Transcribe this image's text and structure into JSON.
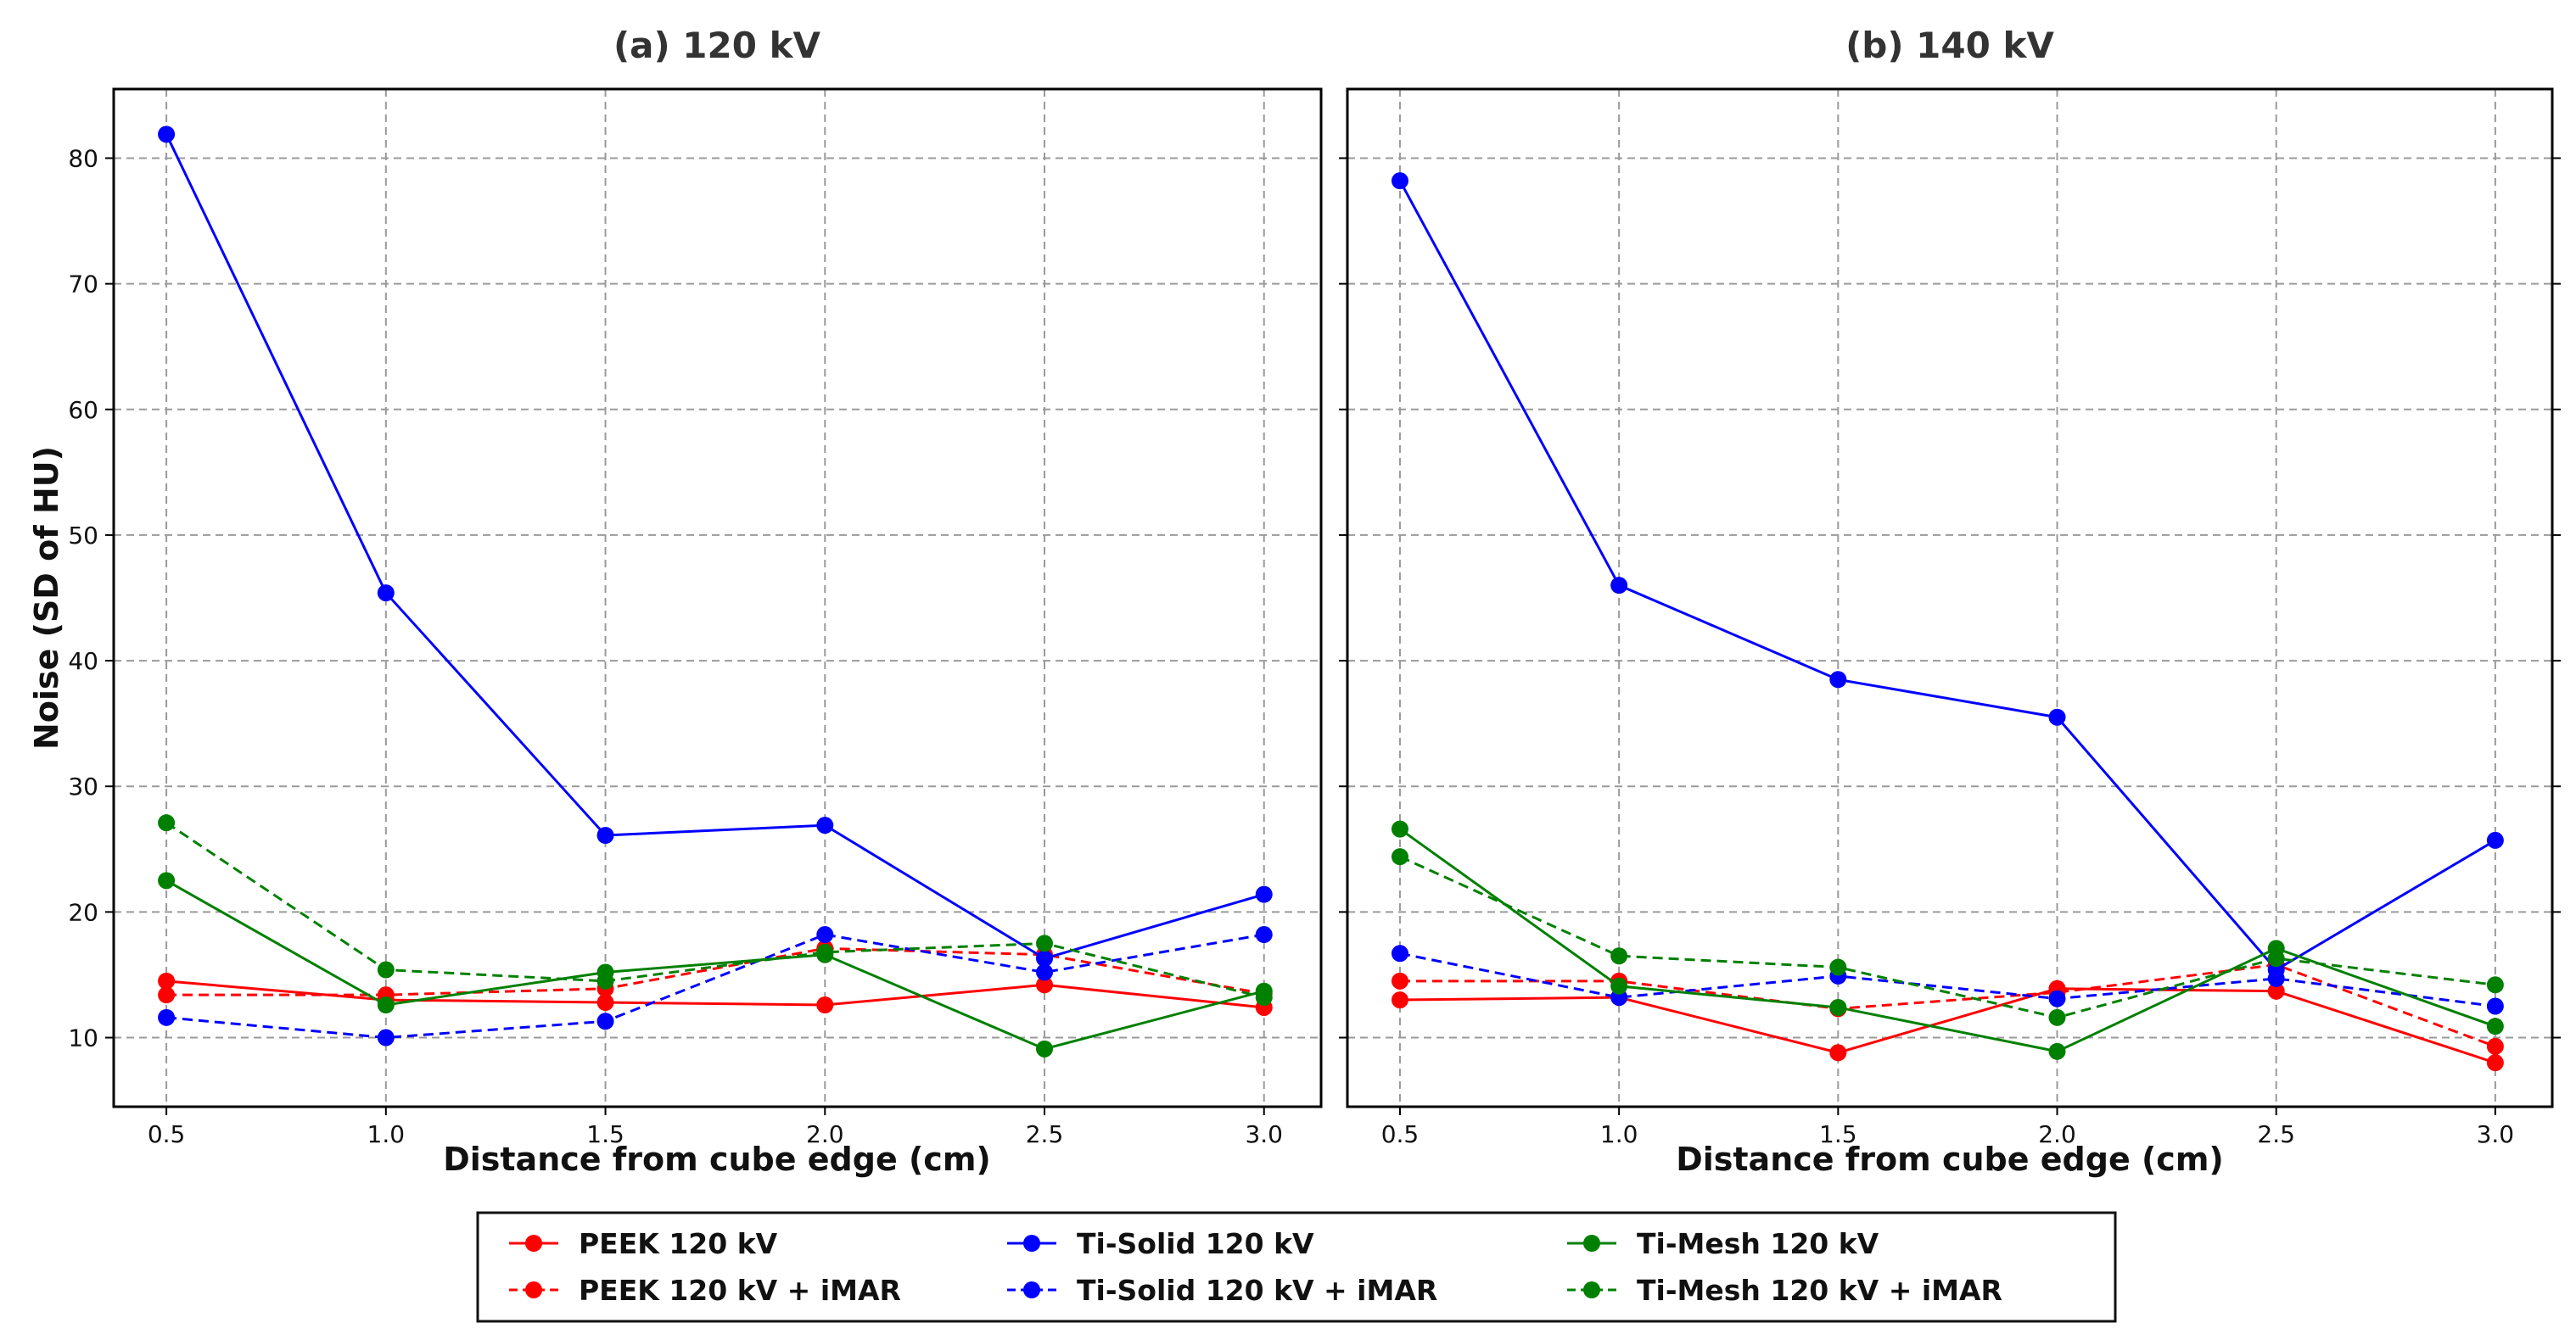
{
  "chart_data": {
    "type": "line",
    "shared": {
      "xlabel": "Distance from cube edge (cm)",
      "ylabel": "Noise (SD of HU)",
      "x": [
        0.5,
        1.0,
        1.5,
        2.0,
        2.5,
        3.0
      ],
      "x_tick_labels": [
        "0.5",
        "1.0",
        "1.5",
        "2.0",
        "2.5",
        "3.0"
      ],
      "xlim": [
        0.38,
        3.13
      ],
      "ylim": [
        4.5,
        85.5
      ],
      "y_ticks": [
        10,
        20,
        30,
        40,
        50,
        60,
        70,
        80
      ],
      "y_tick_labels": [
        "10",
        "20",
        "30",
        "40",
        "50",
        "60",
        "70",
        "80"
      ],
      "grid": true,
      "legend_position": "bottom-center"
    },
    "panels": [
      {
        "title": "(a) 120 kV",
        "series": [
          {
            "name": "PEEK 120 kV",
            "color": "#ff0000",
            "style": "solid",
            "values": [
              14.5,
              13.0,
              12.8,
              12.6,
              14.2,
              12.4
            ]
          },
          {
            "name": "PEEK 120 kV + iMAR",
            "color": "#ff0000",
            "style": "dashed",
            "values": [
              13.4,
              13.4,
              13.9,
              17.1,
              16.6,
              13.5
            ]
          },
          {
            "name": "Ti-Solid 120 kV",
            "color": "#0000ff",
            "style": "solid",
            "values": [
              81.9,
              45.4,
              26.1,
              26.9,
              16.3,
              21.4
            ]
          },
          {
            "name": "Ti-Solid 120 kV + iMAR",
            "color": "#0000ff",
            "style": "dashed",
            "values": [
              11.6,
              10.0,
              11.3,
              18.2,
              15.2,
              18.2
            ]
          },
          {
            "name": "Ti-Mesh 120 kV",
            "color": "#008000",
            "style": "solid",
            "values": [
              22.5,
              12.6,
              15.2,
              16.6,
              9.1,
              13.7
            ]
          },
          {
            "name": "Ti-Mesh 120 kV + iMAR",
            "color": "#008000",
            "style": "dashed",
            "values": [
              27.1,
              15.4,
              14.5,
              16.8,
              17.5,
              13.2
            ]
          }
        ]
      },
      {
        "title": "(b) 140 kV",
        "series": [
          {
            "name": "PEEK 120 kV",
            "color": "#ff0000",
            "style": "solid",
            "values": [
              13.0,
              13.2,
              8.8,
              13.9,
              13.7,
              8.0
            ]
          },
          {
            "name": "PEEK 120 kV + iMAR",
            "color": "#ff0000",
            "style": "dashed",
            "values": [
              14.5,
              14.5,
              12.3,
              13.6,
              15.8,
              9.3
            ]
          },
          {
            "name": "Ti-Solid 120 kV",
            "color": "#0000ff",
            "style": "solid",
            "values": [
              78.2,
              46.0,
              38.5,
              35.5,
              15.4,
              25.7
            ]
          },
          {
            "name": "Ti-Solid 120 kV + iMAR",
            "color": "#0000ff",
            "style": "dashed",
            "values": [
              16.7,
              13.2,
              14.9,
              13.1,
              14.7,
              12.5
            ]
          },
          {
            "name": "Ti-Mesh 120 kV",
            "color": "#008000",
            "style": "solid",
            "values": [
              26.6,
              14.1,
              12.4,
              8.9,
              17.1,
              10.9
            ]
          },
          {
            "name": "Ti-Mesh 120 kV + iMAR",
            "color": "#008000",
            "style": "dashed",
            "values": [
              24.4,
              16.5,
              15.6,
              11.6,
              16.3,
              14.2
            ]
          }
        ]
      }
    ],
    "legend": [
      {
        "name": "PEEK 120 kV",
        "color": "#ff0000",
        "style": "solid"
      },
      {
        "name": "PEEK 120 kV + iMAR",
        "color": "#ff0000",
        "style": "dashed"
      },
      {
        "name": "Ti-Solid 120 kV",
        "color": "#0000ff",
        "style": "solid"
      },
      {
        "name": "Ti-Solid 120 kV + iMAR",
        "color": "#0000ff",
        "style": "dashed"
      },
      {
        "name": "Ti-Mesh 120 kV",
        "color": "#008000",
        "style": "solid"
      },
      {
        "name": "Ti-Mesh 120 kV + iMAR",
        "color": "#008000",
        "style": "dashed"
      }
    ]
  }
}
